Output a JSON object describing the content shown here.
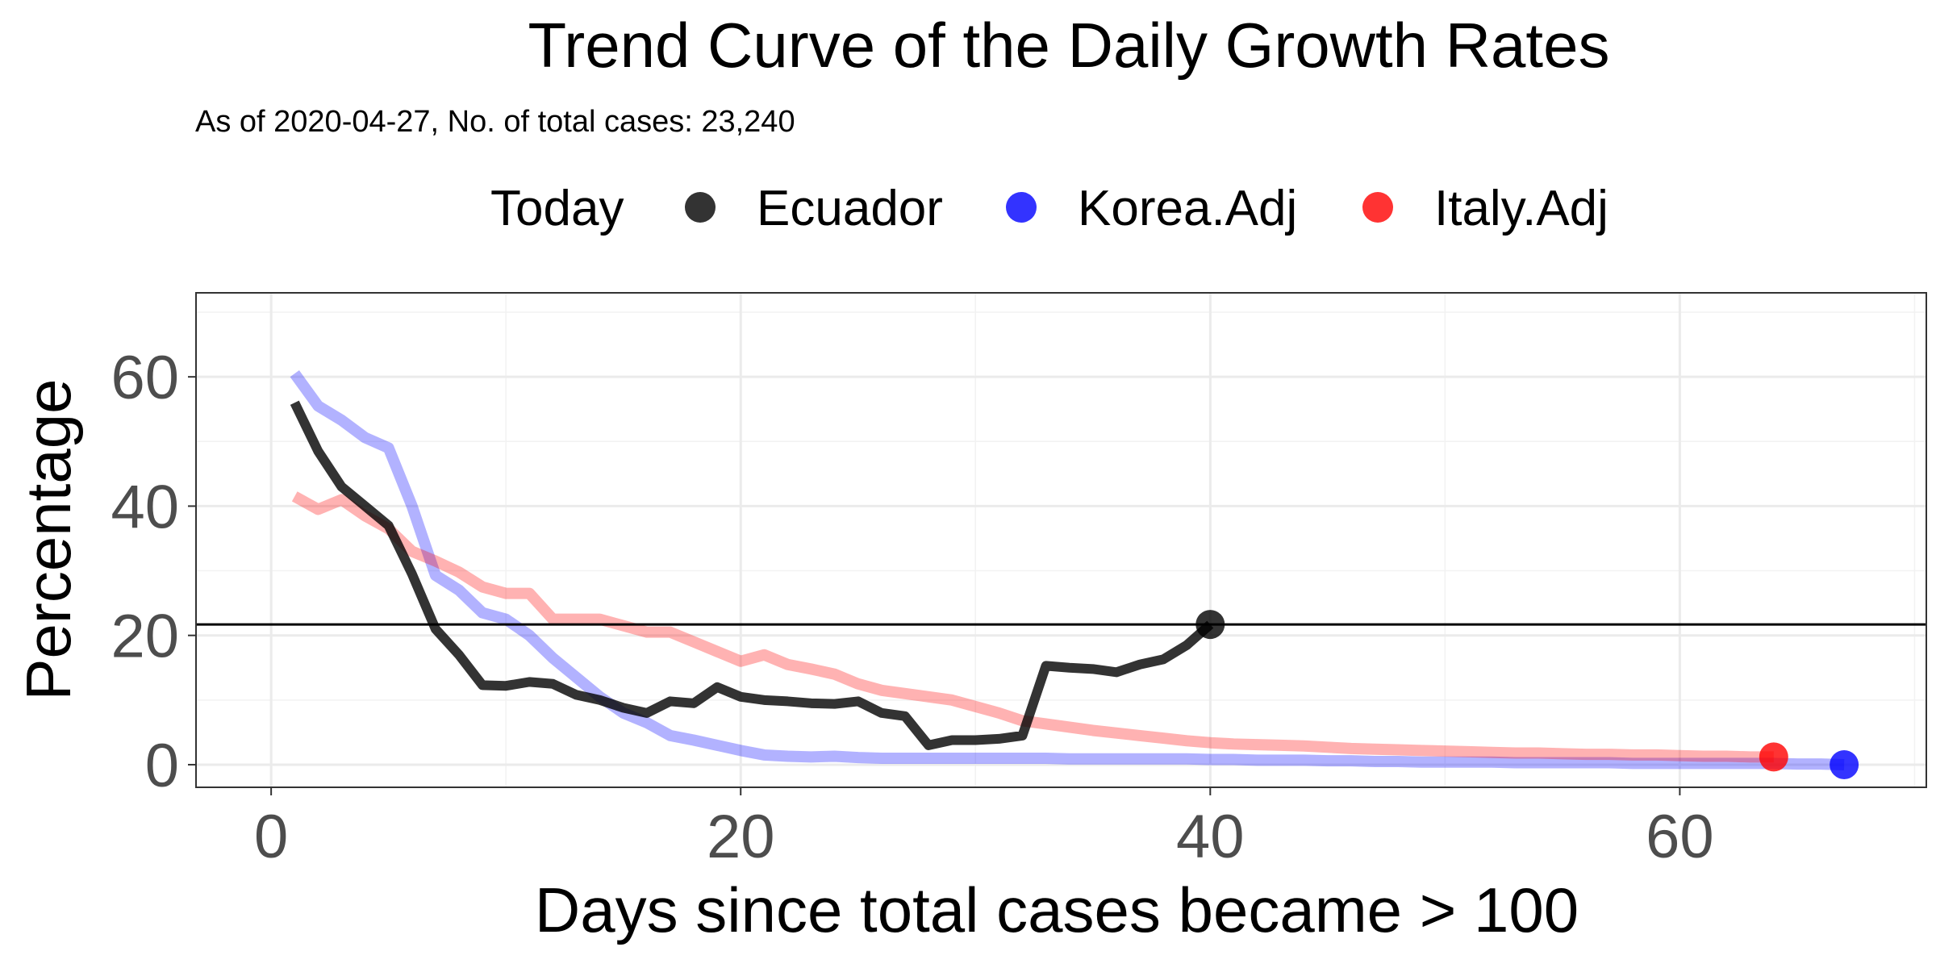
{
  "chart_data": {
    "type": "line",
    "title": "Trend Curve of the Daily Growth Rates",
    "subtitle": "As of 2020-04-27, No. of total cases: 23,240",
    "xlabel": "Days since total cases became > 100",
    "ylabel": "Percentage",
    "xlim": [
      -3.2,
      70.5
    ],
    "ylim": [
      -3.5,
      73
    ],
    "xticks": [
      0,
      20,
      40,
      60
    ],
    "yticks": [
      0,
      20,
      40,
      60
    ],
    "grid": true,
    "legend": {
      "position": "top",
      "title": "Today",
      "items": [
        {
          "label": "Ecuador",
          "color": "#000000"
        },
        {
          "label": "Korea.Adj",
          "color": "#0000ff"
        },
        {
          "label": "Italy.Adj",
          "color": "#ff0000"
        }
      ]
    },
    "reference_line": {
      "y": 21.7
    },
    "series": [
      {
        "name": "Korea.Adj",
        "color": "#0000ff",
        "x": [
          1,
          2,
          3,
          4,
          5,
          6,
          7,
          8,
          9,
          10,
          11,
          12,
          13,
          14,
          15,
          16,
          17,
          18,
          19,
          20,
          21,
          22,
          23,
          24,
          25,
          26,
          27,
          28,
          29,
          30,
          31,
          32,
          33,
          34,
          35,
          36,
          37,
          38,
          39,
          40,
          41,
          42,
          43,
          44,
          45,
          46,
          47,
          48,
          49,
          50,
          51,
          52,
          53,
          54,
          55,
          56,
          57,
          58,
          59,
          60,
          61,
          62,
          63,
          64,
          65,
          66,
          67
        ],
        "y": [
          60.5,
          55.5,
          53.3,
          50.6,
          49.0,
          40.0,
          29.3,
          27.0,
          23.5,
          22.5,
          20.0,
          16.5,
          13.5,
          10.5,
          8.0,
          6.5,
          4.5,
          3.8,
          3.0,
          2.2,
          1.5,
          1.3,
          1.2,
          1.3,
          1.1,
          1.0,
          1.0,
          1.0,
          1.0,
          1.0,
          1.0,
          1.0,
          1.0,
          0.9,
          0.9,
          0.9,
          0.9,
          0.9,
          0.9,
          0.8,
          0.8,
          0.7,
          0.7,
          0.7,
          0.6,
          0.6,
          0.5,
          0.5,
          0.4,
          0.4,
          0.4,
          0.4,
          0.3,
          0.3,
          0.3,
          0.3,
          0.3,
          0.2,
          0.2,
          0.2,
          0.2,
          0.2,
          0.2,
          0.2,
          0.1,
          0.1,
          0.0
        ],
        "today_point": {
          "x": 67,
          "y": 0.0
        }
      },
      {
        "name": "Italy.Adj",
        "color": "#ff0000",
        "x": [
          1,
          2,
          3,
          4,
          5,
          6,
          7,
          8,
          9,
          10,
          11,
          12,
          13,
          14,
          15,
          16,
          17,
          18,
          19,
          20,
          21,
          22,
          23,
          24,
          25,
          26,
          27,
          28,
          29,
          30,
          31,
          32,
          33,
          34,
          35,
          36,
          37,
          38,
          39,
          40,
          41,
          42,
          43,
          44,
          45,
          46,
          47,
          48,
          49,
          50,
          51,
          52,
          53,
          54,
          55,
          56,
          57,
          58,
          59,
          60,
          61,
          62,
          63,
          64
        ],
        "y": [
          41.5,
          39.5,
          41.0,
          38.5,
          36.5,
          33.0,
          31.5,
          29.8,
          27.5,
          26.5,
          26.5,
          22.5,
          22.5,
          22.5,
          21.5,
          20.5,
          20.5,
          19.0,
          17.5,
          16.0,
          17.0,
          15.5,
          14.8,
          14.0,
          12.5,
          11.5,
          11.0,
          10.5,
          10.0,
          9.0,
          8.0,
          6.8,
          6.3,
          5.8,
          5.3,
          4.9,
          4.5,
          4.1,
          3.7,
          3.4,
          3.2,
          3.1,
          3.0,
          2.9,
          2.7,
          2.5,
          2.4,
          2.3,
          2.2,
          2.1,
          2.0,
          1.9,
          1.8,
          1.8,
          1.7,
          1.6,
          1.6,
          1.5,
          1.5,
          1.4,
          1.3,
          1.3,
          1.2,
          1.2
        ],
        "today_point": {
          "x": 64,
          "y": 1.2
        }
      },
      {
        "name": "Ecuador",
        "color": "#000000",
        "x": [
          1,
          2,
          3,
          4,
          5,
          6,
          7,
          8,
          9,
          10,
          11,
          12,
          13,
          14,
          15,
          16,
          17,
          18,
          19,
          20,
          21,
          22,
          23,
          24,
          25,
          26,
          27,
          28,
          29,
          30,
          31,
          32,
          33,
          34,
          35,
          36,
          37,
          38,
          39,
          40
        ],
        "y": [
          56.0,
          48.5,
          43.0,
          40.0,
          37.0,
          29.5,
          21.0,
          17.0,
          12.3,
          12.2,
          12.8,
          12.5,
          10.8,
          10.0,
          8.8,
          8.0,
          9.8,
          9.5,
          12.0,
          10.5,
          10.0,
          9.8,
          9.5,
          9.4,
          9.8,
          8.0,
          7.5,
          3.0,
          3.8,
          3.8,
          4.0,
          4.5,
          15.3,
          15.0,
          14.8,
          14.3,
          15.5,
          16.3,
          18.5,
          21.7
        ],
        "today_point": {
          "x": 40,
          "y": 21.7
        }
      }
    ]
  }
}
